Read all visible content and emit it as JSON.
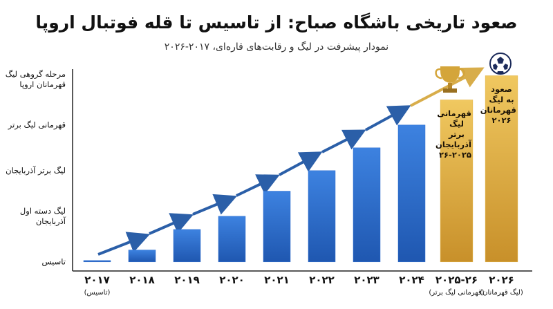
{
  "chart_data": {
    "type": "bar",
    "title": "صعود تاریخی باشگاه صباح: از تاسیس تا قله فوتبال اروپا",
    "subtitle": "نمودار پیشرفت در لیگ و رقابت‌های قاره‌ای، ۲۰۱۷-۲۰۲۶",
    "categories": [
      "۲۰۱۷",
      "۲۰۱۸",
      "۲۰۱۹",
      "۲۰۲۰",
      "۲۰۲۱",
      "۲۰۲۲",
      "۲۰۲۳",
      "۲۰۲۴",
      "۲۰۲۵-۲۶",
      "۲۰۲۶"
    ],
    "category_notes": [
      "(تاسیس)",
      null,
      null,
      null,
      null,
      null,
      null,
      null,
      "(قهرمانی لیگ برتر)",
      "(لیگ قهرمانان)"
    ],
    "values": [
      0.03,
      0.26,
      0.71,
      1.0,
      1.55,
      2.0,
      2.5,
      3.0,
      3.55,
      4.08
    ],
    "colors": [
      "#2f6fd0",
      "#2f6fd0",
      "#2f6fd0",
      "#2f6fd0",
      "#2f6fd0",
      "#2f6fd0",
      "#2f6fd0",
      "#2f6fd0",
      "#e0b040",
      "#e0b040"
    ],
    "bar_labels": [
      null,
      null,
      null,
      null,
      null,
      null,
      null,
      null,
      "قهرمانی لیگ برتر آذربایجان ۲۰۲۵-۲۶",
      "صعود به لیگ قهرمانان ۲۰۲۶"
    ],
    "ylim": [
      -0.2,
      4.3
    ],
    "yticks": [
      {
        "value": 0,
        "label": "تاسیس"
      },
      {
        "value": 1,
        "label": "لیگ دسته اول آذربایجان"
      },
      {
        "value": 2,
        "label": "لیگ برتر آذربایجان"
      },
      {
        "value": 3,
        "label": "قهرمانی لیگ برتر"
      },
      {
        "value": 4,
        "label": "مرحله گروهی لیگ قهرمانان اروپا"
      }
    ],
    "grid": false
  }
}
